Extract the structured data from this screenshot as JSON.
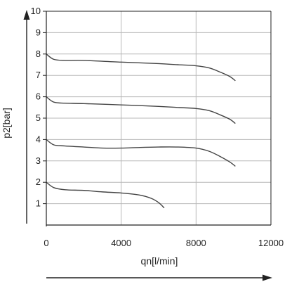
{
  "chart_data": {
    "type": "line",
    "xlabel": "qn[l/min]",
    "ylabel": "p2[bar]",
    "xlim": [
      0,
      12000
    ],
    "ylim": [
      0,
      10
    ],
    "x_ticks": [
      0,
      4000,
      8000,
      12000
    ],
    "y_ticks": [
      1,
      2,
      3,
      4,
      5,
      6,
      7,
      8,
      9,
      10
    ],
    "grid": true,
    "legend": "none",
    "colors": {
      "grid": "#b8b8b8",
      "axis": "#222222",
      "line": "#444444"
    },
    "series": [
      {
        "x": [
          0,
          400,
          1000,
          2000,
          4000,
          6000,
          7000,
          8000,
          8700,
          9300,
          9800,
          10100
        ],
        "y": [
          8.0,
          7.75,
          7.7,
          7.7,
          7.62,
          7.55,
          7.5,
          7.45,
          7.35,
          7.15,
          6.95,
          6.75
        ]
      },
      {
        "x": [
          0,
          400,
          1000,
          2000,
          4000,
          6000,
          7000,
          8000,
          8700,
          9300,
          9800,
          10100
        ],
        "y": [
          6.0,
          5.75,
          5.7,
          5.68,
          5.62,
          5.55,
          5.5,
          5.45,
          5.35,
          5.15,
          4.95,
          4.75
        ]
      },
      {
        "x": [
          0,
          400,
          1000,
          2000,
          3000,
          4000,
          5000,
          6000,
          7000,
          8000,
          8700,
          9300,
          9800,
          10100
        ],
        "y": [
          4.0,
          3.75,
          3.7,
          3.65,
          3.6,
          3.6,
          3.63,
          3.65,
          3.65,
          3.6,
          3.45,
          3.2,
          2.95,
          2.75
        ]
      },
      {
        "x": [
          0,
          400,
          1000,
          2000,
          3000,
          4000,
          5000,
          5600,
          6000,
          6300
        ],
        "y": [
          2.0,
          1.75,
          1.65,
          1.62,
          1.55,
          1.5,
          1.4,
          1.25,
          1.05,
          0.8
        ]
      }
    ]
  }
}
